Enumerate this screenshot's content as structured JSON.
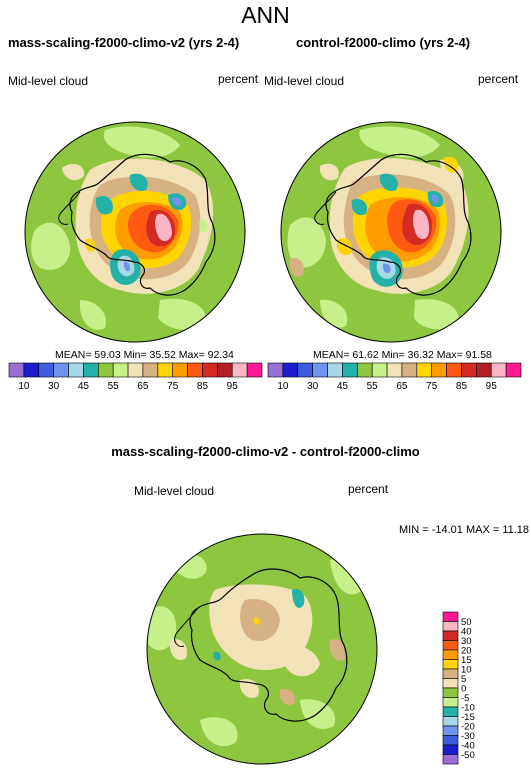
{
  "page_title": "ANN",
  "diff_title": "mass-scaling-f2000-climo-v2 - control-f2000-climo",
  "chart_data": [
    {
      "type": "heatmap",
      "title": "mass-scaling-f2000-climo-v2 (yrs 2-4)",
      "left_label": "Mid-level cloud",
      "right_label": "percent",
      "stats": "MEAN= 59.03  Min= 35.52  Max= 92.34",
      "mean": 59.03,
      "min": 35.52,
      "max": 92.34,
      "colorbar_ticks": [
        "10",
        "30",
        "45",
        "55",
        "65",
        "75",
        "85",
        "95"
      ],
      "colorbar_colors": [
        "#9b6dd6",
        "#1c1ccf",
        "#3d5bdc",
        "#6f93ea",
        "#a8d8e6",
        "#23b1a8",
        "#8ec640",
        "#c8f08a",
        "#f2e2b8",
        "#d6b283",
        "#ffd400",
        "#ff9c00",
        "#ff5a14",
        "#d42a24",
        "#b32026",
        "#fbb6c6",
        "#ff1a94"
      ]
    },
    {
      "type": "heatmap",
      "title": "control-f2000-climo (yrs 2-4)",
      "left_label": "Mid-level cloud",
      "right_label": "percent",
      "stats": "MEAN= 61.62  Min= 36.32  Max= 91.58",
      "mean": 61.62,
      "min": 36.32,
      "max": 91.58,
      "colorbar_ticks": [
        "10",
        "30",
        "45",
        "55",
        "65",
        "75",
        "85",
        "95"
      ],
      "colorbar_colors": [
        "#9b6dd6",
        "#1c1ccf",
        "#3d5bdc",
        "#6f93ea",
        "#a8d8e6",
        "#23b1a8",
        "#8ec640",
        "#c8f08a",
        "#f2e2b8",
        "#d6b283",
        "#ffd400",
        "#ff9c00",
        "#ff5a14",
        "#d42a24",
        "#b32026",
        "#fbb6c6",
        "#ff1a94"
      ]
    },
    {
      "type": "heatmap",
      "title": "mass-scaling-f2000-climo-v2 - control-f2000-climo",
      "left_label": "Mid-level cloud",
      "right_label": "percent",
      "stats": "MIN = -14.01 MAX =  11.18",
      "min": -14.01,
      "max": 11.18,
      "colorbar_ticks": [
        "50",
        "40",
        "30",
        "20",
        "15",
        "10",
        "5",
        "0",
        "-5",
        "-10",
        "-15",
        "-20",
        "-30",
        "-40",
        "-50"
      ],
      "colorbar_colors": [
        "#ff1a94",
        "#fbb6c6",
        "#d42a24",
        "#ff5a14",
        "#ff9c00",
        "#ffd400",
        "#d6b283",
        "#f2e2b8",
        "#8ec640",
        "#c8f08a",
        "#23b1a8",
        "#a8d8e6",
        "#6f93ea",
        "#3d5bdc",
        "#1c1ccf",
        "#9b6dd6"
      ]
    }
  ]
}
